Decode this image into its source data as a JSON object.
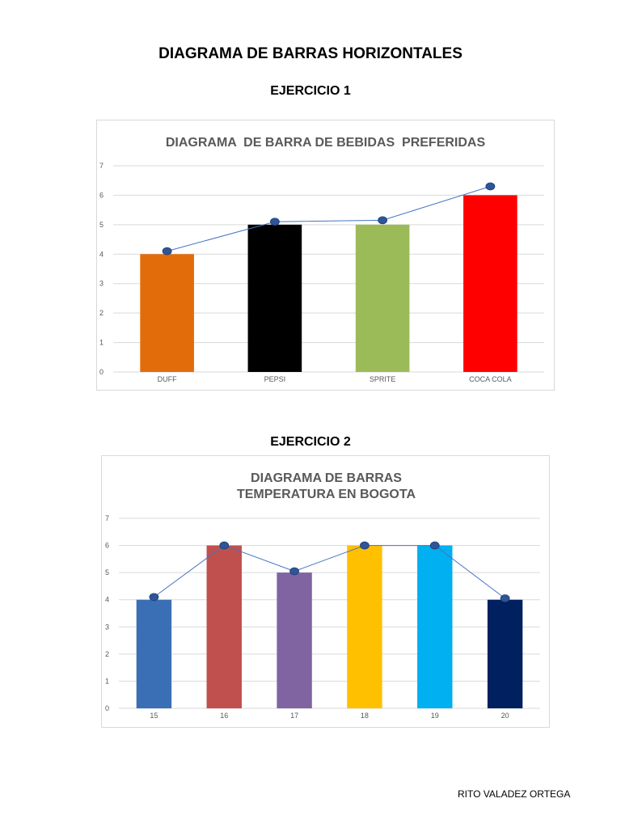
{
  "page": {
    "title": "DIAGRAMA DE BARRAS HORIZONTALES",
    "author": "RITO VALADEZ ORTEGA"
  },
  "sections": [
    {
      "label": "EJERCICIO 1"
    },
    {
      "label": "EJERCICIO 2"
    }
  ],
  "chart_data": [
    {
      "type": "bar",
      "title": "DIAGRAMA  DE BARRA DE BEBIDAS  PREFERIDAS",
      "title_lines": [
        "DIAGRAMA  DE BARRA DE BEBIDAS  PREFERIDAS"
      ],
      "categories": [
        "DUFF",
        "PEPSI",
        "SPRITE",
        "COCA COLA"
      ],
      "values": [
        4,
        5,
        5,
        6
      ],
      "colors": [
        "#e36c0a",
        "#000000",
        "#9bbb59",
        "#ff0000"
      ],
      "line_overlay": {
        "values": [
          4.1,
          5.1,
          5.15,
          6.3
        ],
        "color": "#4472c4",
        "marker_color": "#2e5597"
      },
      "ylim": [
        0,
        7
      ],
      "yticks": [
        0,
        1,
        2,
        3,
        4,
        5,
        6,
        7
      ],
      "grid": true,
      "xlabel": "",
      "ylabel": ""
    },
    {
      "type": "bar",
      "title": "DIAGRAMA DE BARRAS TEMPERATURA EN BOGOTA",
      "title_lines": [
        "DIAGRAMA DE BARRAS",
        "TEMPERATURA EN BOGOTA"
      ],
      "categories": [
        "15",
        "16",
        "17",
        "18",
        "19",
        "20"
      ],
      "values": [
        4,
        6,
        5,
        6,
        6,
        4
      ],
      "colors": [
        "#3a6fb5",
        "#c0504d",
        "#8064a2",
        "#ffc000",
        "#00b0f0",
        "#002060"
      ],
      "line_overlay": {
        "values": [
          4.1,
          6.0,
          5.05,
          6.0,
          6.0,
          4.05
        ],
        "color": "#4472c4",
        "marker_color": "#2e5597"
      },
      "ylim": [
        0,
        7
      ],
      "yticks": [
        0,
        1,
        2,
        3,
        4,
        5,
        6,
        7
      ],
      "grid": true,
      "xlabel": "",
      "ylabel": ""
    }
  ]
}
